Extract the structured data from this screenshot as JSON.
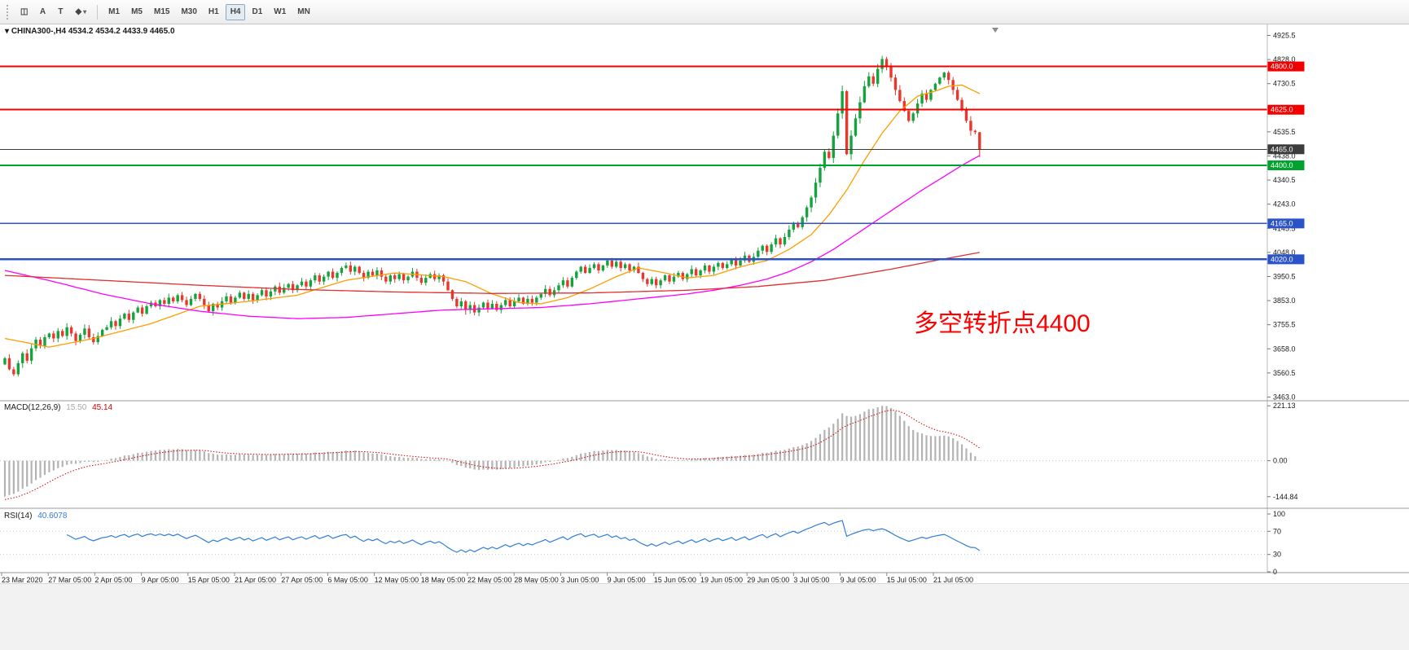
{
  "toolbar": {
    "tools": [
      {
        "name": "chart-window-icon",
        "glyph": "◫"
      },
      {
        "name": "annotation-a-icon",
        "glyph": "A"
      },
      {
        "name": "text-tool-icon",
        "glyph": "T"
      },
      {
        "name": "shapes-tool-icon",
        "glyph": "◆"
      },
      {
        "name": "dropdown-caret-icon",
        "glyph": "▾"
      }
    ],
    "timeframes": [
      "M1",
      "M5",
      "M15",
      "M30",
      "H1",
      "H4",
      "D1",
      "W1",
      "MN"
    ],
    "active_timeframe": "H4"
  },
  "chart": {
    "marker": "▾",
    "symbol": "CHINA300-,H4",
    "ohlc": "4534.2 4534.2 4433.9 4465.0"
  },
  "indicators": {
    "macd": {
      "label": "MACD(12,26,9)",
      "main_value": "15.50",
      "signal_value": "45.14"
    },
    "rsi": {
      "label": "RSI(14)",
      "value": "40.6078"
    }
  },
  "chart_data": {
    "type": "candlestick",
    "symbol": "CHINA300-",
    "timeframe": "H4",
    "ohlc_current": {
      "open": 4534.2,
      "high": 4534.2,
      "low": 4433.9,
      "close": 4465.0
    },
    "ylim": [
      3448,
      4960
    ],
    "price_axis": [
      4925.5,
      4828.0,
      4730.5,
      4633.0,
      4535.5,
      4438.0,
      4340.5,
      4243.0,
      4145.5,
      4048.0,
      3950.5,
      3853.0,
      3755.5,
      3658.0,
      3560.5,
      3463.0
    ],
    "colors": {
      "up": "#14a33c",
      "down": "#e8372c",
      "current_price_line": "#4a4a4a"
    },
    "closes": [
      3620,
      3575,
      3555,
      3600,
      3640,
      3610,
      3660,
      3695,
      3670,
      3705,
      3720,
      3700,
      3730,
      3710,
      3745,
      3720,
      3690,
      3715,
      3740,
      3705,
      3685,
      3710,
      3735,
      3745,
      3770,
      3750,
      3780,
      3800,
      3775,
      3805,
      3825,
      3800,
      3830,
      3845,
      3830,
      3855,
      3840,
      3865,
      3850,
      3875,
      3855,
      3835,
      3860,
      3880,
      3860,
      3835,
      3810,
      3840,
      3825,
      3850,
      3870,
      3845,
      3865,
      3885,
      3860,
      3880,
      3855,
      3875,
      3895,
      3870,
      3890,
      3910,
      3885,
      3905,
      3920,
      3895,
      3915,
      3930,
      3910,
      3935,
      3955,
      3930,
      3950,
      3970,
      3945,
      3965,
      3985,
      3995,
      3970,
      3990,
      3965,
      3945,
      3970,
      3955,
      3975,
      3950,
      3930,
      3955,
      3940,
      3960,
      3935,
      3950,
      3970,
      3945,
      3925,
      3945,
      3960,
      3940,
      3955,
      3930,
      3895,
      3860,
      3830,
      3850,
      3815,
      3835,
      3805,
      3825,
      3845,
      3820,
      3840,
      3815,
      3835,
      3855,
      3830,
      3850,
      3865,
      3840,
      3860,
      3845,
      3865,
      3880,
      3900,
      3875,
      3895,
      3915,
      3935,
      3910,
      3945,
      3970,
      3990,
      3965,
      3985,
      4000,
      3975,
      3995,
      4015,
      3990,
      4010,
      3985,
      4000,
      3975,
      3990,
      3965,
      3940,
      3920,
      3940,
      3915,
      3935,
      3955,
      3930,
      3950,
      3965,
      3940,
      3960,
      3980,
      3955,
      3975,
      3995,
      3970,
      3990,
      4005,
      3985,
      4000,
      4020,
      3995,
      4015,
      4035,
      4010,
      4030,
      4055,
      4075,
      4050,
      4080,
      4105,
      4080,
      4110,
      4140,
      4165,
      4150,
      4190,
      4230,
      4270,
      4330,
      4390,
      4455,
      4430,
      4520,
      4610,
      4700,
      4445,
      4520,
      4590,
      4655,
      4720,
      4760,
      4730,
      4790,
      4830,
      4800,
      4755,
      4705,
      4660,
      4620,
      4580,
      4610,
      4650,
      4690,
      4665,
      4705,
      4730,
      4755,
      4775,
      4745,
      4705,
      4665,
      4625,
      4580,
      4540,
      4534.2,
      4465
    ],
    "levels": [
      {
        "price": 4800.0,
        "label": "4800.0",
        "color": "#f20000",
        "width": 2,
        "type": "resistance"
      },
      {
        "price": 4625.0,
        "label": "4625.0",
        "color": "#f20000",
        "width": 2,
        "type": "resistance"
      },
      {
        "price": 4465.0,
        "label": "4465.0",
        "color": "#3c3c3c",
        "width": 1,
        "type": "current-price"
      },
      {
        "price": 4400.0,
        "label": "4400.0",
        "color": "#00a32e",
        "width": 2,
        "type": "pivot"
      },
      {
        "price": 4165.0,
        "label": "4165.0",
        "color": "#2b53c8",
        "width": 1.5,
        "type": "support"
      },
      {
        "price": 4020.0,
        "label": "4020.0",
        "color": "#2b53c8",
        "width": 2.5,
        "type": "support"
      }
    ],
    "ma_lines": [
      {
        "name": "fast-ma",
        "color": "#ff9d00",
        "anchors": [
          [
            0,
            3700
          ],
          [
            10,
            3665
          ],
          [
            20,
            3700
          ],
          [
            33,
            3760
          ],
          [
            44,
            3830
          ],
          [
            55,
            3850
          ],
          [
            66,
            3875
          ],
          [
            77,
            3935
          ],
          [
            88,
            3965
          ],
          [
            99,
            3950
          ],
          [
            104,
            3930
          ],
          [
            110,
            3880
          ],
          [
            116,
            3845
          ],
          [
            121,
            3840
          ],
          [
            127,
            3865
          ],
          [
            132,
            3900
          ],
          [
            138,
            3950
          ],
          [
            143,
            3985
          ],
          [
            149,
            3965
          ],
          [
            154,
            3945
          ],
          [
            160,
            3955
          ],
          [
            166,
            3990
          ],
          [
            172,
            4015
          ],
          [
            177,
            4060
          ],
          [
            182,
            4120
          ],
          [
            186,
            4200
          ],
          [
            190,
            4300
          ],
          [
            194,
            4420
          ],
          [
            198,
            4530
          ],
          [
            202,
            4620
          ],
          [
            206,
            4680
          ],
          [
            210,
            4700
          ],
          [
            213,
            4720
          ],
          [
            216,
            4725
          ],
          [
            220,
            4690
          ]
        ]
      },
      {
        "name": "mid-ma",
        "color": "#ff00ff",
        "anchors": [
          [
            0,
            3975
          ],
          [
            11,
            3930
          ],
          [
            22,
            3880
          ],
          [
            33,
            3840
          ],
          [
            44,
            3810
          ],
          [
            55,
            3790
          ],
          [
            66,
            3780
          ],
          [
            77,
            3785
          ],
          [
            88,
            3800
          ],
          [
            99,
            3815
          ],
          [
            110,
            3820
          ],
          [
            121,
            3825
          ],
          [
            132,
            3840
          ],
          [
            143,
            3860
          ],
          [
            154,
            3880
          ],
          [
            160,
            3895
          ],
          [
            166,
            3915
          ],
          [
            172,
            3940
          ],
          [
            177,
            3970
          ],
          [
            182,
            4010
          ],
          [
            187,
            4060
          ],
          [
            192,
            4120
          ],
          [
            197,
            4180
          ],
          [
            202,
            4240
          ],
          [
            207,
            4300
          ],
          [
            212,
            4355
          ],
          [
            216,
            4400
          ],
          [
            220,
            4440
          ]
        ]
      },
      {
        "name": "slow-ma",
        "color": "#e03030",
        "anchors": [
          [
            0,
            3955
          ],
          [
            22,
            3935
          ],
          [
            44,
            3915
          ],
          [
            66,
            3898
          ],
          [
            88,
            3888
          ],
          [
            110,
            3882
          ],
          [
            132,
            3884
          ],
          [
            154,
            3895
          ],
          [
            170,
            3910
          ],
          [
            185,
            3935
          ],
          [
            200,
            3980
          ],
          [
            210,
            4015
          ],
          [
            220,
            4048
          ]
        ]
      }
    ],
    "annotation": {
      "text": "多空转折点4400",
      "color": "#ff0000",
      "price": 3790,
      "x": 1122
    },
    "macd": {
      "params": "12,26,9",
      "axis_labels": [
        "221.13",
        "0.00",
        "-144.84"
      ],
      "max": 221.13,
      "min": -144.84,
      "histogram_color": "#b3b3b3",
      "signal_color": "#d40000"
    },
    "rsi": {
      "period": 14,
      "last": 40.6078,
      "axis_labels": [
        100,
        70,
        30,
        0
      ],
      "level_lines": [
        70,
        30
      ],
      "color": "#2f7ed8"
    },
    "time_labels": [
      "23 Mar 2020",
      "27 Mar 05:00",
      "2 Apr 05:00",
      "9 Apr 05:00",
      "15 Apr 05:00",
      "21 Apr 05:00",
      "27 Apr 05:00",
      "6 May 05:00",
      "12 May 05:00",
      "18 May 05:00",
      "22 May 05:00",
      "28 May 05:00",
      "3 Jun 05:00",
      "9 Jun 05:00",
      "15 Jun 05:00",
      "19 Jun 05:00",
      "29 Jun 05:00",
      "3 Jul 05:00",
      "9 Jul 05:00",
      "15 Jul 05:00",
      "21 Jul 05:00"
    ]
  }
}
